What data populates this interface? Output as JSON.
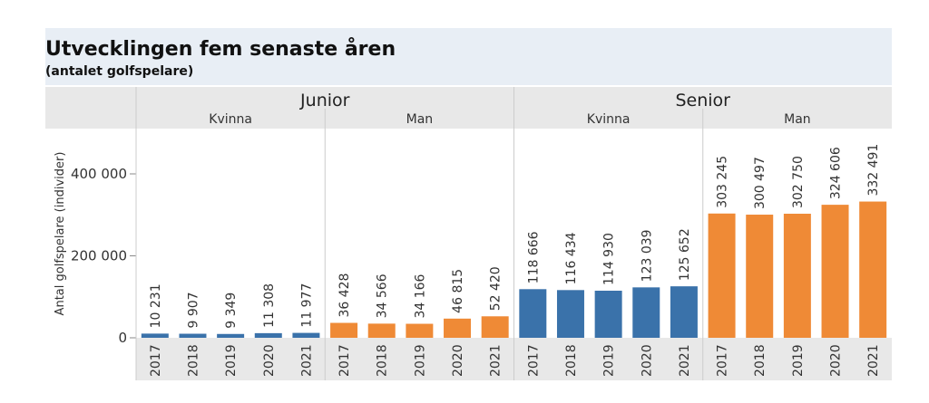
{
  "chart_data": {
    "type": "bar",
    "title": "Utvecklingen fem senaste åren",
    "subtitle": "(antalet golfspelare)",
    "ylabel": "Antal golfspelare (individer)",
    "ylim": [
      0,
      500000
    ],
    "yticks": [
      0,
      200000,
      400000
    ],
    "ytick_labels": [
      "0",
      "200 000",
      "400 000"
    ],
    "grid": false,
    "groups": [
      {
        "label": "Junior",
        "subgroups": [
          {
            "label": "Kvinna",
            "color": "#3a72aa",
            "categories": [
              "2017",
              "2018",
              "2019",
              "2020",
              "2021"
            ],
            "values": [
              10231,
              9907,
              9349,
              11308,
              11977
            ],
            "value_labels": [
              "10 231",
              "9 907",
              "9 349",
              "11 308",
              "11 977"
            ]
          },
          {
            "label": "Man",
            "color": "#ef8a36",
            "categories": [
              "2017",
              "2018",
              "2019",
              "2020",
              "2021"
            ],
            "values": [
              36428,
              34566,
              34166,
              46815,
              52420
            ],
            "value_labels": [
              "36 428",
              "34 566",
              "34 166",
              "46 815",
              "52 420"
            ]
          }
        ]
      },
      {
        "label": "Senior",
        "subgroups": [
          {
            "label": "Kvinna",
            "color": "#3a72aa",
            "categories": [
              "2017",
              "2018",
              "2019",
              "2020",
              "2021"
            ],
            "values": [
              118666,
              116434,
              114930,
              123039,
              125652
            ],
            "value_labels": [
              "118 666",
              "116 434",
              "114 930",
              "123 039",
              "125 652"
            ]
          },
          {
            "label": "Man",
            "color": "#ef8a36",
            "categories": [
              "2017",
              "2018",
              "2019",
              "2020",
              "2021"
            ],
            "values": [
              303245,
              300497,
              302750,
              324606,
              332491
            ],
            "value_labels": [
              "303 245",
              "300 497",
              "302 750",
              "324 606",
              "332 491"
            ]
          }
        ]
      }
    ]
  },
  "colors": {
    "title_band": "#e8eef5",
    "header_band": "#e8e8e8",
    "kvinna": "#3a72aa",
    "man": "#ef8a36"
  }
}
